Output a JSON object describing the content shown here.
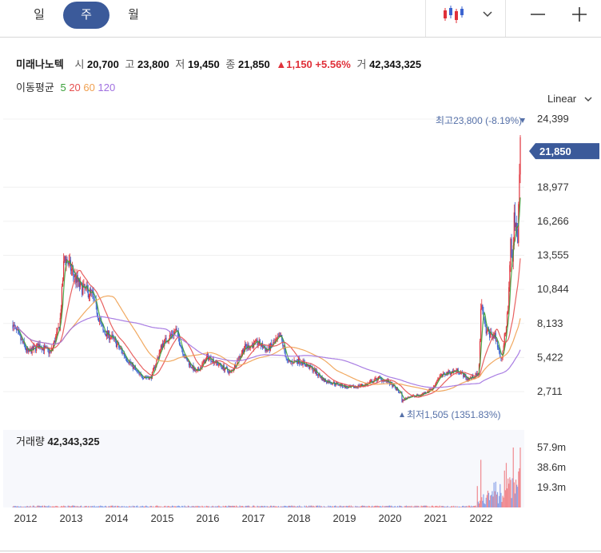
{
  "tabs": [
    "일",
    "주",
    "월"
  ],
  "active_tab": "주",
  "toolbar": {
    "chart_type_icon": "candlestick-icon",
    "dropdown_icon": "chevron-down-icon",
    "zoom_out_icon": "minus-icon",
    "zoom_in_icon": "plus-icon"
  },
  "stock": {
    "name": "미래나노텍",
    "open_label": "시",
    "open": "20,700",
    "high_label": "고",
    "high": "23,800",
    "low_label": "저",
    "low": "19,450",
    "close_label": "종",
    "close": "21,850",
    "change": "▲1,150",
    "change_pct": "+5.56%",
    "volume_label": "거",
    "volume": "42,343,325"
  },
  "ma": {
    "label": "이동평균",
    "items": [
      "5",
      "20",
      "60",
      "120"
    ],
    "colors": [
      "#3aa03a",
      "#e65050",
      "#f0a050",
      "#a070e0"
    ]
  },
  "scale_label": "Linear",
  "colors": {
    "up": "#e0313a",
    "down": "#3c64d0",
    "current_tag": "#3b5a9a",
    "annotation": "#5570a8"
  },
  "chart_data": {
    "type": "candlestick",
    "x_ticks": [
      "2012",
      "2013",
      "2014",
      "2015",
      "2016",
      "2017",
      "2018",
      "2019",
      "2020",
      "2021",
      "2022"
    ],
    "y_ticks": [
      "24,399",
      "18,977",
      "16,266",
      "13,555",
      "10,844",
      "8,133",
      "5,422",
      "2,711"
    ],
    "y_ticks_values": [
      24399,
      18977,
      16266,
      13555,
      10844,
      8133,
      5422,
      2711
    ],
    "ylim": [
      1400,
      25000
    ],
    "current_price_label": "21,850",
    "current_price": 21850,
    "high_annotation": {
      "label": "최고",
      "value": "23,800 (-8.19%)",
      "price": 23800
    },
    "low_annotation": {
      "label": "최저",
      "value": "1,505 (1351.83%)",
      "price": 1505
    },
    "volume_label": "거래량",
    "volume_value": "42,343,325",
    "volume_ticks": [
      "57.9m",
      "38.6m",
      "19.3m"
    ],
    "volume_ticks_values": [
      57.9,
      38.6,
      19.3
    ],
    "price_keypoints": [
      [
        2011.72,
        8000
      ],
      [
        2012.05,
        5800
      ],
      [
        2012.3,
        6400
      ],
      [
        2012.55,
        5800
      ],
      [
        2012.75,
        8000
      ],
      [
        2012.85,
        13500
      ],
      [
        2012.95,
        12800
      ],
      [
        2013.2,
        11000
      ],
      [
        2013.45,
        10500
      ],
      [
        2013.7,
        7500
      ],
      [
        2013.9,
        7000
      ],
      [
        2014.25,
        5200
      ],
      [
        2014.5,
        4000
      ],
      [
        2014.75,
        3800
      ],
      [
        2015.0,
        6500
      ],
      [
        2015.3,
        7600
      ],
      [
        2015.5,
        5400
      ],
      [
        2015.75,
        4200
      ],
      [
        2016.0,
        5500
      ],
      [
        2016.5,
        4200
      ],
      [
        2016.8,
        6200
      ],
      [
        2017.1,
        6600
      ],
      [
        2017.3,
        6000
      ],
      [
        2017.6,
        7100
      ],
      [
        2017.75,
        5000
      ],
      [
        2018.0,
        5200
      ],
      [
        2018.3,
        4500
      ],
      [
        2018.55,
        3600
      ],
      [
        2018.85,
        3300
      ],
      [
        2019.1,
        3000
      ],
      [
        2019.5,
        3300
      ],
      [
        2019.75,
        3800
      ],
      [
        2019.95,
        3500
      ],
      [
        2020.05,
        3200
      ],
      [
        2020.25,
        2500
      ],
      [
        2020.2,
        1800
      ],
      [
        2020.4,
        2300
      ],
      [
        2020.65,
        2400
      ],
      [
        2020.95,
        3000
      ],
      [
        2021.05,
        3800
      ],
      [
        2021.25,
        4200
      ],
      [
        2021.5,
        4400
      ],
      [
        2021.7,
        3700
      ],
      [
        2021.95,
        4100
      ],
      [
        2022.0,
        9700
      ],
      [
        2022.1,
        7500
      ],
      [
        2022.3,
        7100
      ],
      [
        2022.45,
        5300
      ],
      [
        2022.55,
        8000
      ],
      [
        2022.6,
        9800
      ],
      [
        2022.65,
        14800
      ],
      [
        2022.7,
        12500
      ],
      [
        2022.72,
        17000
      ],
      [
        2022.8,
        14500
      ],
      [
        2022.84,
        19800
      ],
      [
        2022.86,
        23800
      ]
    ],
    "volume_peaks_millions": [
      [
        2022.0,
        46
      ],
      [
        2022.55,
        43
      ],
      [
        2022.7,
        57.9
      ],
      [
        2022.86,
        57.9
      ]
    ]
  }
}
